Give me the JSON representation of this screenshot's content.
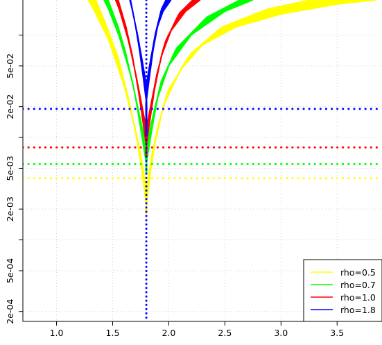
{
  "chart_data": {
    "type": "line",
    "title": "",
    "xlabel": "",
    "ylabel": "",
    "x_scale": "linear",
    "y_scale": "log",
    "xlim": [
      0.7,
      3.9
    ],
    "ylim": [
      0.00016,
      0.22
    ],
    "x_ticks": [
      {
        "value": 1.0,
        "label": "1.0"
      },
      {
        "value": 1.5,
        "label": "1.5"
      },
      {
        "value": 2.0,
        "label": "2.0"
      },
      {
        "value": 2.5,
        "label": "2.5"
      },
      {
        "value": 3.0,
        "label": "3.0"
      },
      {
        "value": 3.5,
        "label": "3.5"
      }
    ],
    "y_ticks": [
      {
        "value": 0.0002,
        "label": "2e-04"
      },
      {
        "value": 0.0005,
        "label": "5e-04"
      },
      {
        "value": 0.002,
        "label": "2e-03"
      },
      {
        "value": 0.005,
        "label": "5e-03"
      },
      {
        "value": 0.02,
        "label": "2e-02"
      },
      {
        "value": 0.05,
        "label": "5e-02"
      }
    ],
    "y_minor_ticks": [
      0.0001,
      0.001,
      0.01,
      0.1
    ],
    "grid": true,
    "legend_position": "bottom-right",
    "vertical_reference_line": {
      "x": 1.8,
      "color": "#0000ff",
      "style": "dotted"
    },
    "series": [
      {
        "name": "rho=0.5",
        "color": "#ffff00",
        "threshold": 0.004,
        "min_value": 0.0018,
        "band_count": 14,
        "curve_x": [
          1.35,
          1.45,
          1.55,
          1.65,
          1.72,
          1.76,
          1.78,
          1.8,
          1.82,
          1.84,
          1.88,
          1.95,
          2.1,
          2.3,
          2.6,
          3.0,
          3.5,
          3.85
        ],
        "curve_y": [
          0.22,
          0.12,
          0.06,
          0.022,
          0.009,
          0.0048,
          0.0032,
          0.0021,
          0.0032,
          0.0048,
          0.009,
          0.02,
          0.045,
          0.08,
          0.12,
          0.16,
          0.2,
          0.22
        ]
      },
      {
        "name": "rho=0.7",
        "color": "#00ff00",
        "threshold": 0.0055,
        "min_value": 0.0045,
        "band_count": 12,
        "curve_x": [
          1.46,
          1.55,
          1.62,
          1.7,
          1.75,
          1.78,
          1.8,
          1.82,
          1.85,
          1.9,
          2.0,
          2.2,
          2.5,
          2.75
        ],
        "curve_y": [
          0.22,
          0.12,
          0.065,
          0.026,
          0.012,
          0.0075,
          0.0055,
          0.0075,
          0.012,
          0.024,
          0.05,
          0.1,
          0.17,
          0.22
        ]
      },
      {
        "name": "rho=1.0",
        "color": "#ff0000",
        "threshold": 0.008,
        "min_value": 0.0065,
        "band_count": 12,
        "curve_x": [
          1.55,
          1.62,
          1.68,
          1.73,
          1.77,
          1.79,
          1.8,
          1.81,
          1.83,
          1.87,
          1.93,
          2.02,
          2.15,
          2.28
        ],
        "curve_y": [
          0.22,
          0.12,
          0.06,
          0.028,
          0.014,
          0.0098,
          0.008,
          0.0098,
          0.014,
          0.028,
          0.06,
          0.11,
          0.17,
          0.22
        ]
      },
      {
        "name": "rho=1.8",
        "color": "#0000ff",
        "threshold": 0.019,
        "min_value": 0.0105,
        "band_count": 12,
        "curve_x": [
          1.66,
          1.7,
          1.74,
          1.77,
          1.79,
          1.8,
          1.81,
          1.83,
          1.86,
          1.9,
          1.95,
          2.02
        ],
        "curve_y": [
          0.22,
          0.13,
          0.07,
          0.04,
          0.027,
          0.022,
          0.027,
          0.04,
          0.07,
          0.12,
          0.17,
          0.22
        ]
      }
    ]
  }
}
